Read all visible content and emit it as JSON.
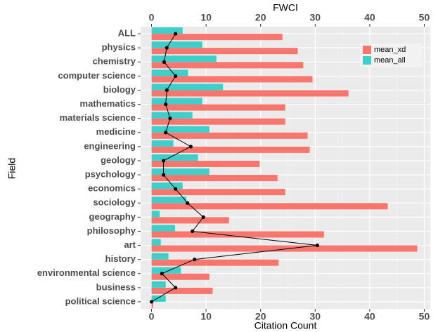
{
  "chart_data": {
    "type": "bar",
    "orientation": "horizontal",
    "xlabel": "Citation Count",
    "ylabel": "Field",
    "x2label": "FWCI",
    "categories": [
      "ALL",
      "physics",
      "chemistry",
      "computer science",
      "biology",
      "mathematics",
      "materials science",
      "medicine",
      "engineering",
      "geology",
      "psychology",
      "economics",
      "sociology",
      "geography",
      "philosophy",
      "art",
      "history",
      "environmental science",
      "business",
      "political science"
    ],
    "series": [
      {
        "name": "mean_xd",
        "color": "#F8766D",
        "values": [
          24.0,
          26.8,
          27.8,
          29.5,
          36.1,
          24.5,
          24.5,
          28.6,
          29.0,
          19.8,
          23.1,
          24.5,
          43.3,
          14.2,
          31.6,
          48.7,
          23.3,
          10.6,
          11.2,
          0.3
        ]
      },
      {
        "name": "mean_all",
        "color": "#3ECFCB",
        "values": [
          5.7,
          9.3,
          11.9,
          6.7,
          13.1,
          9.3,
          7.5,
          10.6,
          4.0,
          8.5,
          10.6,
          5.7,
          6.4,
          1.5,
          4.3,
          1.7,
          3.1,
          5.4,
          2.6,
          2.6
        ]
      }
    ],
    "line": {
      "color": "#000000",
      "values": [
        4.4,
        2.8,
        2.3,
        4.4,
        2.8,
        2.6,
        3.4,
        2.6,
        7.2,
        2.2,
        2.2,
        4.4,
        6.6,
        9.5,
        7.5,
        30.4,
        7.9,
        1.9,
        4.4,
        0.0
      ]
    },
    "xlim": [
      -2,
      51.1
    ],
    "xticks": [
      0,
      10,
      20,
      30,
      40,
      50
    ],
    "x2lim": [
      -2,
      51.1
    ],
    "x2ticks": [
      0,
      10,
      20,
      30,
      40,
      50
    ],
    "grid": true,
    "legend": "top-right"
  }
}
